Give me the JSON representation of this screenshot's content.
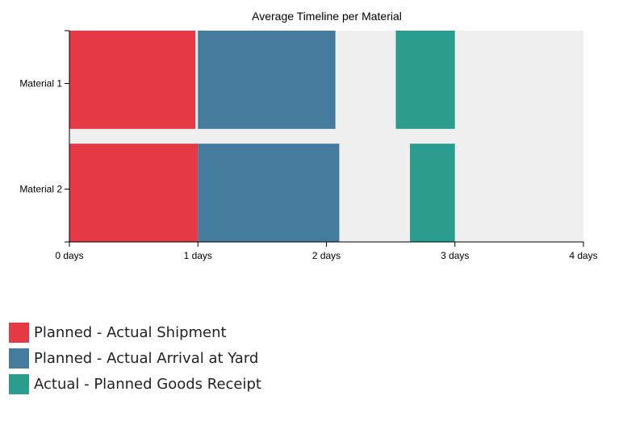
{
  "chart_data": {
    "type": "bar",
    "orientation": "horizontal",
    "stacked_timeline": true,
    "title": "Average Timeline per Material",
    "xlabel": "",
    "ylabel": "",
    "x_unit": "days",
    "xlim": [
      0,
      4
    ],
    "x_ticks": [
      0,
      1,
      2,
      3,
      4
    ],
    "x_tick_labels": [
      "0 days",
      "1 days",
      "2 days",
      "3 days",
      "4 days"
    ],
    "categories": [
      "Material 1",
      "Material 2"
    ],
    "plot_background": "#efefef",
    "grid": false,
    "legend_position": "bottom-left",
    "series": [
      {
        "name": "Planned - Actual Shipment",
        "color": "#e63946",
        "segments": [
          {
            "category": "Material 1",
            "start": 0.0,
            "end": 0.98
          },
          {
            "category": "Material 2",
            "start": 0.0,
            "end": 1.0
          }
        ]
      },
      {
        "name": "Planned - Actual Arrival at Yard",
        "color": "#457b9d",
        "segments": [
          {
            "category": "Material 1",
            "start": 1.0,
            "end": 2.07
          },
          {
            "category": "Material 2",
            "start": 1.0,
            "end": 2.1
          }
        ]
      },
      {
        "name": "Actual - Planned Goods Receipt",
        "color": "#2a9d8f",
        "segments": [
          {
            "category": "Material 1",
            "start": 2.54,
            "end": 3.0
          },
          {
            "category": "Material 2",
            "start": 2.65,
            "end": 3.0
          }
        ]
      }
    ]
  }
}
